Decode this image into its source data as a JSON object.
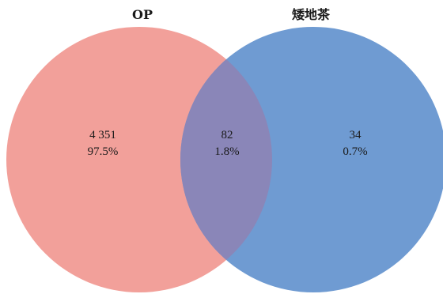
{
  "sets": [
    {
      "label": "OP",
      "color": "#f2a09a"
    },
    {
      "label": "矮地茶",
      "color": "#6f9bd2"
    }
  ],
  "intersection_color": "#8a86b8",
  "regions": {
    "left_only": {
      "count": "4 351",
      "percent": "97.5%"
    },
    "both": {
      "count": "82",
      "percent": "1.8%"
    },
    "right_only": {
      "count": "34",
      "percent": "0.7%"
    }
  }
}
